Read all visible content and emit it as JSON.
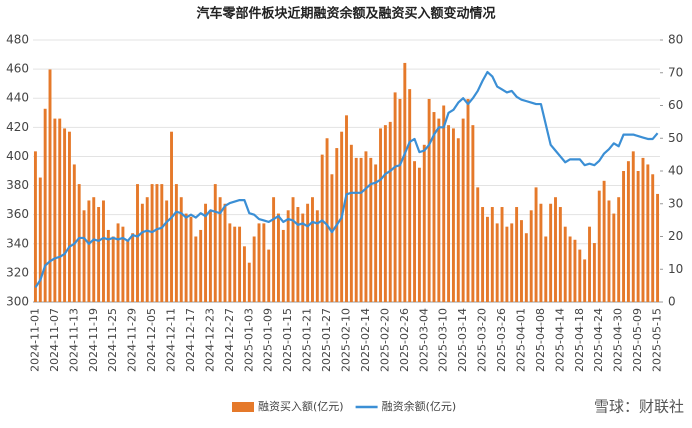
{
  "chart_data": {
    "type": "bar-line",
    "title": "汽车零部件板块近期融资余额及融资买入额变动情况",
    "watermark": "雪球：财联社",
    "categories": [
      "2024-11-01",
      null,
      null,
      null,
      "2024-11-07",
      null,
      null,
      null,
      "2024-11-13",
      null,
      null,
      null,
      "2024-11-19",
      null,
      null,
      null,
      "2024-11-25",
      null,
      null,
      null,
      "2024-11-29",
      null,
      null,
      null,
      "2024-12-05",
      null,
      null,
      null,
      "2024-12-11",
      null,
      null,
      null,
      "2024-12-17",
      null,
      null,
      null,
      "2024-12-23",
      null,
      null,
      null,
      "2024-12-27",
      null,
      null,
      null,
      "2025-01-03",
      null,
      null,
      null,
      "2025-01-09",
      null,
      null,
      null,
      "2025-01-15",
      null,
      null,
      null,
      "2025-01-21",
      null,
      null,
      null,
      "2025-01-27",
      null,
      null,
      null,
      "2025-02-10",
      null,
      null,
      null,
      "2025-02-14",
      null,
      null,
      null,
      "2025-02-20",
      null,
      null,
      null,
      "2025-02-26",
      null,
      null,
      null,
      "2025-03-04",
      null,
      null,
      null,
      "2025-03-10",
      null,
      null,
      null,
      "2025-03-14",
      null,
      null,
      null,
      "2025-03-20",
      null,
      null,
      null,
      "2025-03-26",
      null,
      null,
      null,
      "2025-04-01",
      null,
      null,
      null,
      "2025-04-08",
      null,
      null,
      null,
      "2025-04-14",
      null,
      null,
      null,
      "2025-04-18",
      null,
      null,
      null,
      "2025-04-24",
      null,
      null,
      null,
      "2025-04-30",
      null,
      null,
      null,
      "2025-05-09",
      null,
      null,
      null,
      "2025-05-15"
    ],
    "series": [
      {
        "name": "融资买入额(亿元)",
        "type": "bar",
        "axis": "y2",
        "color": "#e5792a",
        "values": [
          46,
          38,
          59,
          71,
          56,
          56,
          53,
          52,
          42,
          36,
          28,
          31,
          32,
          29,
          31,
          22,
          20,
          24,
          23,
          19,
          21,
          36,
          30,
          32,
          36,
          36,
          36,
          31,
          52,
          36,
          32,
          27,
          26,
          20,
          22,
          30,
          28,
          36,
          32,
          30,
          24,
          23,
          23,
          17,
          12,
          20,
          24,
          24,
          16,
          32,
          27,
          22,
          28,
          32,
          29,
          27,
          30,
          32,
          28,
          45,
          50,
          39,
          47,
          52,
          57,
          48,
          44,
          44,
          46,
          44,
          42,
          53,
          54,
          55,
          64,
          62,
          73,
          65,
          43,
          41,
          48,
          62,
          58,
          56,
          60,
          54,
          53,
          50,
          56,
          62,
          54,
          35,
          29,
          26,
          29,
          24,
          29,
          23,
          24,
          29,
          25,
          21,
          28,
          35,
          30,
          20,
          30,
          32,
          29,
          23,
          20,
          19,
          16,
          13,
          23,
          18,
          34,
          37,
          31,
          27,
          32,
          40,
          43,
          46,
          40,
          44,
          42,
          39,
          33
        ]
      },
      {
        "name": "融资余额(亿元)",
        "type": "line",
        "axis": "y",
        "color": "#3b8fd5",
        "values": [
          310,
          315,
          325,
          328,
          330,
          331,
          333,
          338,
          340,
          344,
          344,
          340,
          343,
          342,
          344,
          343,
          344,
          343,
          344,
          342,
          346,
          345,
          348,
          349,
          348,
          350,
          351,
          355,
          358,
          362,
          361,
          358,
          360,
          358,
          361,
          359,
          363,
          362,
          361,
          366,
          368,
          369,
          370,
          370,
          361,
          360,
          357,
          356,
          355,
          357,
          359,
          355,
          357,
          356,
          353,
          354,
          352,
          355,
          354,
          356,
          353,
          348,
          353,
          358,
          374,
          375,
          375,
          375,
          378,
          381,
          382,
          384,
          388,
          390,
          393,
          394,
          402,
          410,
          412,
          403,
          404,
          408,
          415,
          420,
          420,
          430,
          432,
          437,
          440,
          436,
          440,
          445,
          452,
          458,
          455,
          448,
          446,
          444,
          445,
          441,
          439,
          438,
          437,
          436,
          436,
          422,
          408,
          404,
          400,
          396,
          398,
          398,
          398,
          394,
          395,
          394,
          397,
          402,
          405,
          409,
          407,
          415,
          415,
          415,
          414,
          413,
          412,
          412,
          416
        ]
      }
    ],
    "ylim": [
      300,
      480
    ],
    "yticks": [
      300,
      320,
      340,
      360,
      380,
      400,
      420,
      440,
      460,
      480
    ],
    "y2lim": [
      0,
      80
    ],
    "y2ticks": [
      0,
      10,
      20,
      30,
      40,
      50,
      60,
      70,
      80
    ],
    "grid": true,
    "legend": "bottom"
  }
}
